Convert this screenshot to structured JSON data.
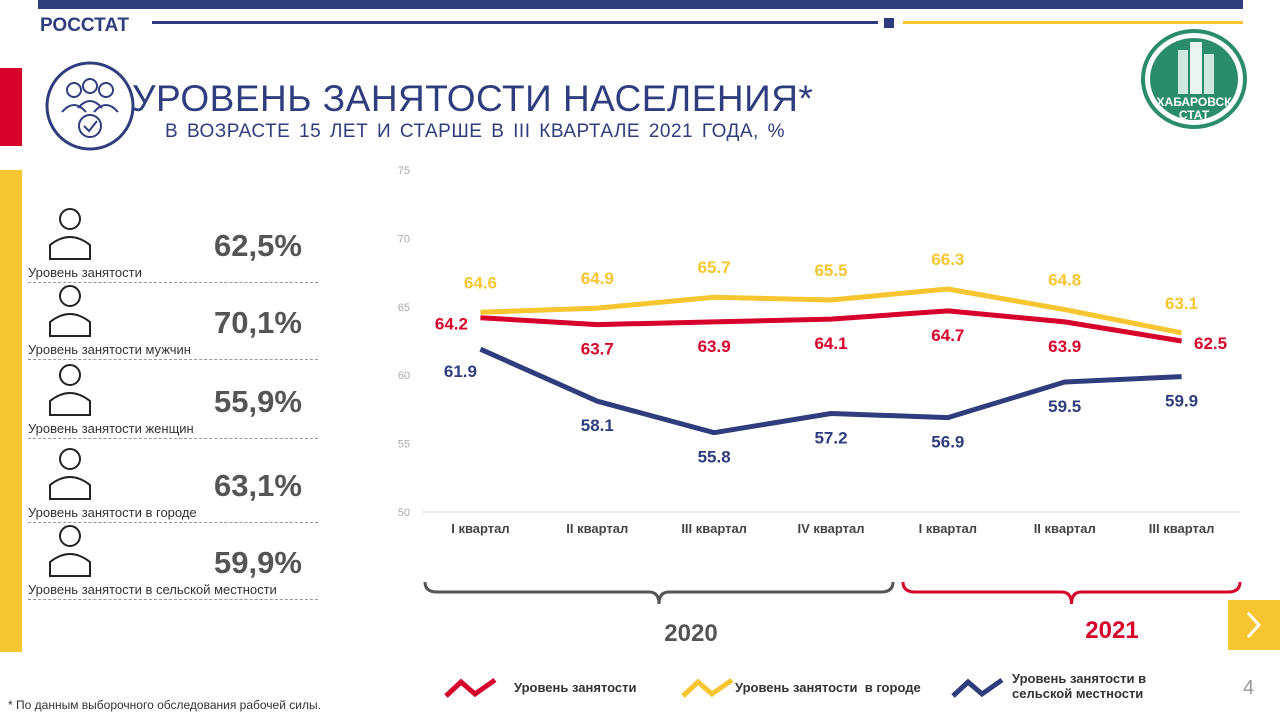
{
  "header": {
    "brand": "РОССТАТ",
    "title": "УРОВЕНЬ ЗАНЯТОСТИ НАСЕЛЕНИЯ*",
    "subtitle": "В ВОЗРАСТЕ 15 ЛЕТ И СТАРШЕ В III КВАРТАЛЕ 2021 ГОДА, %",
    "logo_lines": [
      "ХАБАРОВСК",
      "СТАТ"
    ]
  },
  "indicators": [
    {
      "label": "Уровень занятости",
      "value": "62,5%"
    },
    {
      "label": "Уровень занятости мужчин",
      "value": "70,1%"
    },
    {
      "label": "Уровень занятости женщин",
      "value": "55,9%"
    },
    {
      "label": "Уровень занятости в городе",
      "value": "63,1%"
    },
    {
      "label": "Уровень занятости в сельской местности",
      "value": "59,9%"
    }
  ],
  "chart_data": {
    "type": "line",
    "categories": [
      "I квартал",
      "II квартал",
      "III квартал",
      "IV квартал",
      "I квартал",
      "II квартал",
      "III квартал"
    ],
    "period_labels": [
      "2020",
      "2021"
    ],
    "series": [
      {
        "name": "Уровень занятости",
        "color": "#d7002b",
        "values": [
          64.2,
          63.7,
          63.9,
          64.1,
          64.7,
          63.9,
          62.5
        ]
      },
      {
        "name": "Уровень занятости  в городе",
        "color": "#f7c530",
        "values": [
          64.6,
          64.9,
          65.7,
          65.5,
          66.3,
          64.8,
          63.1
        ]
      },
      {
        "name": "Уровень занятости в сельской местности",
        "color": "#2f3d7e",
        "values": [
          61.9,
          58.1,
          55.8,
          57.2,
          56.9,
          59.5,
          59.9
        ]
      }
    ],
    "ylim": [
      50,
      75
    ],
    "yticks": [
      50,
      55,
      60,
      65,
      70,
      75
    ],
    "grid": false
  },
  "footnote": "* По данным выборочного обследования рабочей силы.",
  "page_number": "4"
}
